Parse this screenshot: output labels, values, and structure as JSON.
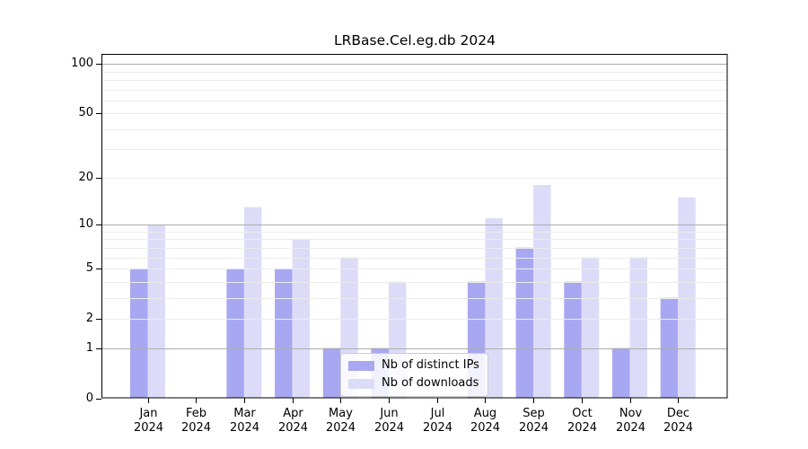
{
  "chart_data": {
    "type": "bar",
    "title": "LRBase.Cel.eg.db 2024",
    "categories": [
      "Jan",
      "Feb",
      "Mar",
      "Apr",
      "May",
      "Jun",
      "Jul",
      "Aug",
      "Sep",
      "Oct",
      "Nov",
      "Dec"
    ],
    "category_year": "2024",
    "series": [
      {
        "name": "Nb of distinct IPs",
        "color": "#a7a7f2",
        "values": [
          5,
          0,
          5,
          5,
          1,
          1,
          0,
          4,
          7,
          4,
          1,
          3
        ]
      },
      {
        "name": "Nb of downloads",
        "color": "#dcdcf8",
        "values": [
          10,
          0,
          13,
          8,
          6,
          4,
          0,
          11,
          18,
          6,
          6,
          15
        ]
      }
    ],
    "y_axis": {
      "scale": "log10(1+x)",
      "tick_values": [
        0,
        1,
        2,
        5,
        10,
        20,
        50,
        100
      ],
      "major_gridlines": [
        1,
        10,
        100
      ],
      "minor_gridlines": [
        2,
        3,
        4,
        5,
        6,
        7,
        8,
        9,
        20,
        30,
        40,
        50,
        60,
        70,
        80,
        90
      ],
      "ylim": [
        0,
        115
      ]
    },
    "xlabel": "",
    "ylabel": "",
    "grid": true,
    "legend_position": "lower center",
    "colors": {
      "major_grid": "#adadad",
      "minor_grid": "#ececec",
      "frame": "#000000"
    }
  }
}
